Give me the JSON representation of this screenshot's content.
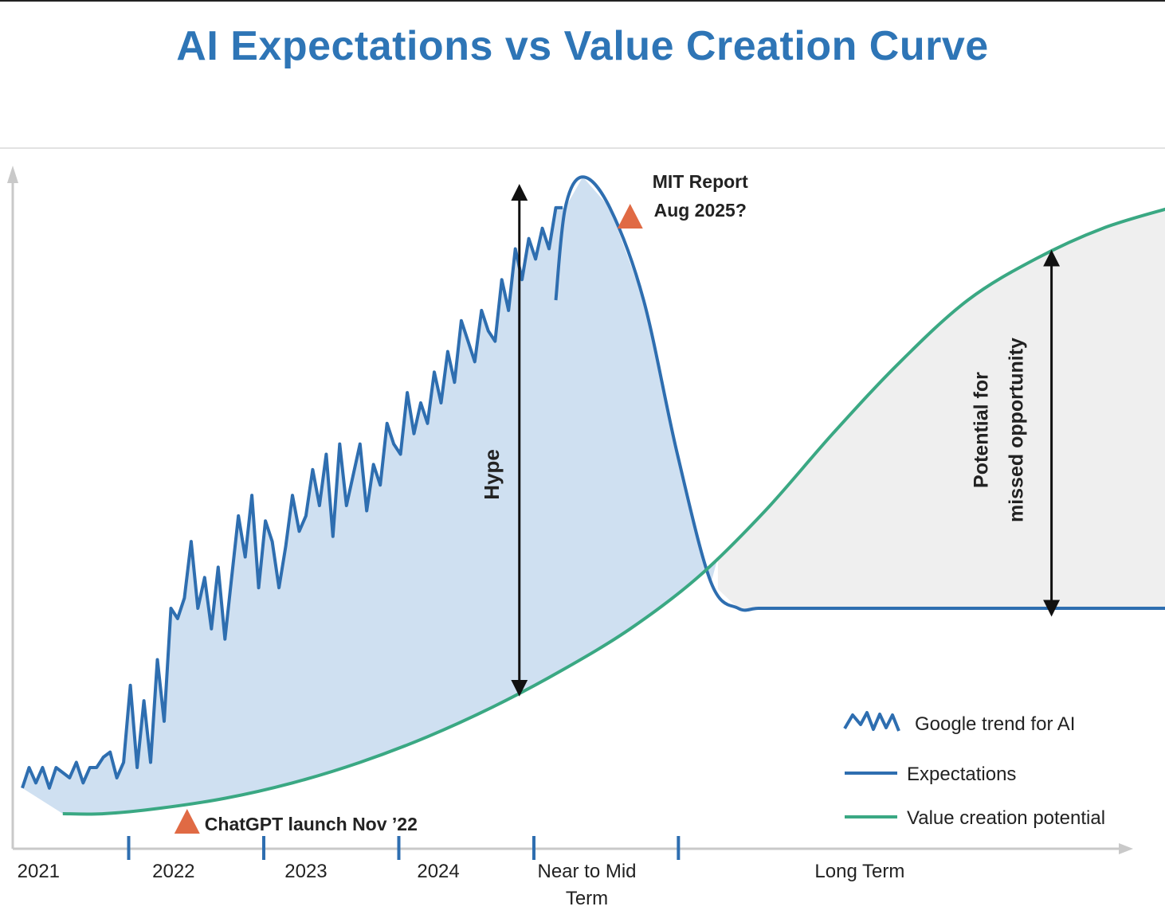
{
  "title": "AI Expectations vs Value Creation Curve",
  "chart_data": {
    "type": "line",
    "x_periods": [
      "2021",
      "2022",
      "2023",
      "2024",
      "Near to Mid Term",
      "Long Term"
    ],
    "x_period_lines": [
      [
        "2021"
      ],
      [
        "2022"
      ],
      [
        "2023"
      ],
      [
        "2024"
      ],
      [
        "Near to Mid",
        "Term"
      ],
      [
        "Long Term"
      ]
    ],
    "series": [
      {
        "name": "Google trend for AI",
        "color": "#2e6eb0",
        "x": [
          0.0,
          0.05,
          0.1,
          0.15,
          0.2,
          0.25,
          0.3,
          0.35,
          0.4,
          0.45,
          0.5,
          0.55,
          0.6,
          0.65,
          0.7,
          0.75,
          0.8,
          0.85,
          0.9,
          0.95,
          1.0,
          1.05,
          1.1,
          1.15,
          1.2,
          1.25,
          1.3,
          1.35,
          1.4,
          1.45,
          1.5,
          1.55,
          1.6,
          1.65,
          1.7,
          1.75,
          1.8,
          1.85,
          1.9,
          1.95,
          2.0,
          2.05,
          2.1,
          2.15,
          2.2,
          2.25,
          2.3,
          2.35,
          2.4,
          2.45,
          2.5,
          2.55,
          2.6,
          2.65,
          2.7,
          2.75,
          2.8,
          2.85,
          2.9,
          2.95,
          3.0,
          3.05,
          3.1,
          3.15,
          3.2,
          3.25,
          3.3,
          3.35,
          3.4,
          3.45,
          3.5,
          3.55,
          3.6,
          3.65,
          3.7,
          3.75,
          3.8,
          3.85,
          3.9,
          3.95,
          4.0
        ],
        "values": [
          5,
          9,
          6,
          9,
          5,
          9,
          8,
          7,
          10,
          6,
          9,
          9,
          11,
          12,
          7,
          10,
          25,
          9,
          22,
          10,
          30,
          18,
          40,
          38,
          42,
          53,
          40,
          46,
          36,
          48,
          34,
          46,
          58,
          50,
          62,
          44,
          57,
          53,
          44,
          52,
          62,
          55,
          58,
          67,
          60,
          70,
          54,
          72,
          60,
          66,
          72,
          59,
          68,
          64,
          76,
          72,
          70,
          82,
          74,
          80,
          76,
          86,
          80,
          90,
          84,
          96,
          92,
          88,
          98,
          94,
          92,
          104,
          98,
          110,
          104,
          112,
          108,
          114,
          110,
          118,
          118
        ]
      },
      {
        "name": "Expectations",
        "color": "#2e6eb0",
        "x": [
          0.3,
          0.6,
          1.0,
          1.5,
          2.0,
          2.5,
          3.0,
          3.5,
          3.95,
          4.02,
          4.15,
          4.35,
          4.6,
          4.85,
          5.1,
          5.3,
          5.45,
          5.7,
          6.0,
          6.3,
          6.6,
          6.9,
          7.2,
          7.5,
          7.8,
          8.1,
          8.5
        ],
        "values": [
          5,
          4,
          6,
          12,
          30,
          50,
          64,
          82,
          100,
          118,
          124,
          118,
          100,
          70,
          45,
          40,
          40,
          40,
          40,
          40,
          40,
          40,
          40,
          40,
          40,
          40,
          40
        ]
      },
      {
        "name": "Value creation potential",
        "color": "#3aa883",
        "x": [
          0.3,
          0.6,
          1.0,
          1.5,
          2.0,
          2.5,
          3.0,
          3.5,
          4.0,
          4.5,
          5.0,
          5.5,
          6.0,
          6.5,
          7.0,
          7.5,
          8.0,
          8.5
        ],
        "values": [
          0,
          0,
          1,
          3,
          6,
          10,
          15,
          21,
          28,
          36,
          46,
          59,
          74,
          88,
          100,
          108,
          114,
          118
        ]
      }
    ],
    "annotations": [
      {
        "text": "ChatGPT launch Nov ’22",
        "x": 1.22
      },
      {
        "text_lines": [
          "MIT Report",
          "Aug 2025?"
        ],
        "x": 4.5
      },
      {
        "text": "Hype"
      },
      {
        "text_lines": [
          "Potential for",
          "missed opportunity"
        ]
      }
    ],
    "legend": {
      "placement": "bottom-right"
    },
    "grid": false
  }
}
